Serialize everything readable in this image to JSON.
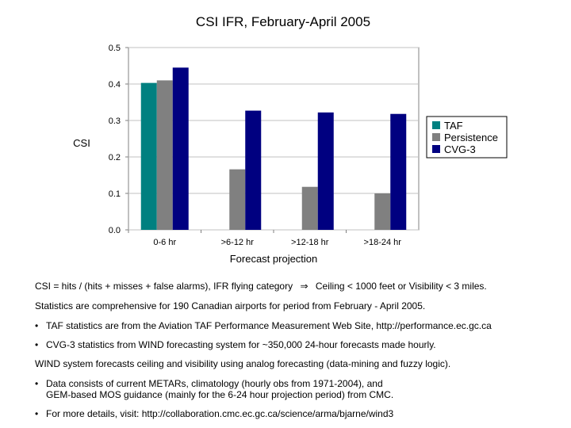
{
  "chart_data": {
    "type": "bar",
    "title": "CSI IFR, February-April 2005",
    "xlabel": "Forecast projection",
    "ylabel": "CSI",
    "ylim": [
      0,
      0.5
    ],
    "yticks": [
      "0.0",
      "0.1",
      "0.2",
      "0.3",
      "0.4",
      "0.5"
    ],
    "yticks_values": [
      0,
      0.1,
      0.2,
      0.3,
      0.4,
      0.5
    ],
    "categories": [
      "0-6 hr",
      ">6-12 hr",
      ">12-18 hr",
      ">18-24 hr"
    ],
    "grid": "horizontal",
    "legend_position": "right",
    "series": [
      {
        "name": "TAF",
        "color": "#008080",
        "values": [
          0.403,
          null,
          null,
          null
        ]
      },
      {
        "name": "Persistence",
        "color": "#808080",
        "values": [
          0.41,
          0.166,
          0.118,
          0.1
        ]
      },
      {
        "name": "CVG-3",
        "color": "#000080",
        "values": [
          0.445,
          0.327,
          0.322,
          0.318
        ]
      }
    ]
  },
  "notes": {
    "csi_def_prefix": "CSI = hits / (hits + misses + false alarms), IFR flying category",
    "arrow": "⇒",
    "csi_def_suffix": "Ceiling < 1000 feet or Visibility < 3 miles.",
    "stats": "Statistics are comprehensive for 190 Canadian airports for period from February - April 2005.",
    "bullet_char": "•",
    "taf_source": "TAF statistics are from the Aviation TAF Performance Measurement Web Site, http://performance.ec.gc.ca",
    "cvg_source": "CVG-3 statistics from WIND forecasting system for ~350,000 24-hour forecasts made hourly.",
    "wind_system": "WIND system forecasts ceiling and visibility using analog forecasting (data-mining and fuzzy logic).",
    "data_consists": "Data consists of current METARs, climatology (hourly obs from 1971-2004), and\nGEM-based MOS guidance (mainly for the 6-24 hour projection period) from CMC.",
    "more_details": "For more details, visit: http://collaboration.cmc.ec.gc.ca/science/arma/bjarne/wind3"
  }
}
